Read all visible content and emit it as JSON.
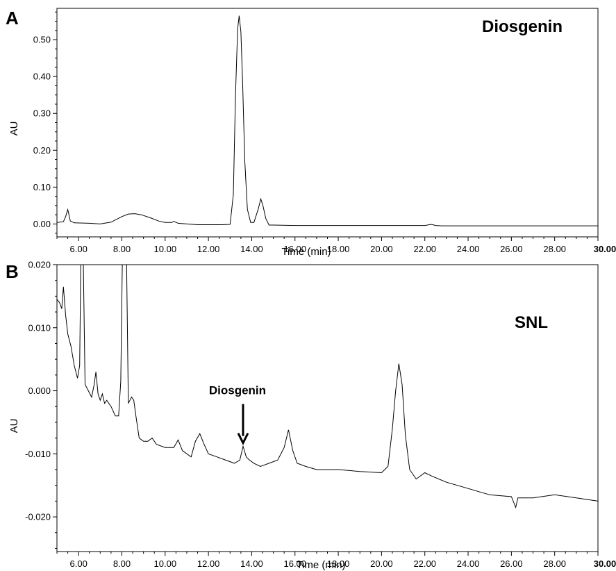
{
  "chart_data": [
    {
      "panel": "A",
      "type": "line",
      "title": "Diosgenin",
      "xlabel": "Time (min)",
      "ylabel": "AU",
      "xlim": [
        5.0,
        30.0
      ],
      "ylim": [
        -0.035,
        0.585
      ],
      "xticks": [
        "6.00",
        "8.00",
        "10.00",
        "12.00",
        "14.00",
        "16.00",
        "18.00",
        "20.00",
        "22.00",
        "24.00",
        "26.00",
        "28.00",
        "30.00"
      ],
      "yticks": [
        "0.00",
        "0.10",
        "0.20",
        "0.30",
        "0.40",
        "0.50"
      ],
      "series": [
        {
          "x": [
            5.0,
            5.3,
            5.4,
            5.5,
            5.62,
            5.8,
            6.5,
            7.0,
            7.5,
            8.0,
            8.3,
            8.6,
            8.9,
            9.3,
            9.7,
            10.0,
            10.3,
            10.4,
            10.6,
            11.0,
            11.5,
            12.0,
            12.6,
            13.0,
            13.15,
            13.25,
            13.35,
            13.42,
            13.5,
            13.58,
            13.68,
            13.8,
            13.95,
            14.1,
            14.3,
            14.42,
            14.52,
            14.65,
            14.8,
            15.0,
            16.0,
            18.0,
            20.0,
            22.0,
            22.3,
            22.5,
            22.8,
            24.0,
            26.0,
            28.0,
            30.0
          ],
          "y": [
            0.004,
            0.006,
            0.02,
            0.039,
            0.008,
            0.003,
            0.002,
            0.0,
            0.005,
            0.02,
            0.027,
            0.028,
            0.025,
            0.017,
            0.008,
            0.004,
            0.004,
            0.007,
            0.002,
            0.0,
            -0.002,
            -0.002,
            -0.002,
            -0.001,
            0.08,
            0.35,
            0.53,
            0.565,
            0.52,
            0.38,
            0.17,
            0.04,
            0.004,
            0.004,
            0.04,
            0.068,
            0.05,
            0.015,
            -0.003,
            -0.003,
            -0.004,
            -0.004,
            -0.004,
            -0.004,
            -0.001,
            -0.004,
            -0.005,
            -0.005,
            -0.005,
            -0.005,
            -0.005
          ]
        }
      ]
    },
    {
      "panel": "B",
      "type": "line",
      "title": "SNL",
      "xlabel": "Time (min)",
      "ylabel": "AU",
      "xlim": [
        5.0,
        30.0
      ],
      "ylim": [
        -0.0255,
        0.02
      ],
      "xticks": [
        "6.00",
        "8.00",
        "10.00",
        "12.00",
        "14.00",
        "16.00",
        "18.00",
        "20.00",
        "22.00",
        "24.00",
        "26.00",
        "28.00",
        "30.00"
      ],
      "yticks": [
        "0.020",
        "0.010",
        "0.000",
        "-0.010",
        "-0.020"
      ],
      "annotations": [
        {
          "text": "Diosgenin",
          "x": 13.6,
          "y": -0.0085
        }
      ],
      "series": [
        {
          "x": [
            5.0,
            5.12,
            5.22,
            5.3,
            5.4,
            5.5,
            5.65,
            5.8,
            5.95,
            6.05,
            6.1,
            6.15,
            6.22,
            6.3,
            6.45,
            6.6,
            6.72,
            6.8,
            6.9,
            7.0,
            7.1,
            7.2,
            7.3,
            7.5,
            7.7,
            7.85,
            7.95,
            8.02,
            8.1,
            8.22,
            8.3,
            8.45,
            8.55,
            8.65,
            8.8,
            9.0,
            9.2,
            9.4,
            9.6,
            10.0,
            10.4,
            10.6,
            10.8,
            11.2,
            11.4,
            11.6,
            11.8,
            12.0,
            12.4,
            12.8,
            13.2,
            13.45,
            13.6,
            13.75,
            13.9,
            14.1,
            14.4,
            14.8,
            15.2,
            15.5,
            15.7,
            15.9,
            16.1,
            16.5,
            17.0,
            18.0,
            19.0,
            20.0,
            20.3,
            20.5,
            20.65,
            20.8,
            20.95,
            21.1,
            21.3,
            21.6,
            22.0,
            22.3,
            23.0,
            24.0,
            24.5,
            25.0,
            26.0,
            26.2,
            26.3,
            27.0,
            28.0,
            29.0,
            30.0
          ],
          "y": [
            0.0145,
            0.014,
            0.013,
            0.0165,
            0.012,
            0.009,
            0.007,
            0.004,
            0.002,
            0.004,
            0.0205,
            0.0205,
            0.0205,
            0.001,
            0.0,
            -0.001,
            0.001,
            0.003,
            -0.0005,
            -0.0015,
            -0.0005,
            -0.002,
            -0.0015,
            -0.0025,
            -0.004,
            -0.004,
            0.0015,
            0.0205,
            0.0205,
            0.0205,
            -0.002,
            -0.001,
            -0.0015,
            -0.004,
            -0.0075,
            -0.008,
            -0.008,
            -0.0075,
            -0.0085,
            -0.009,
            -0.009,
            -0.0078,
            -0.0095,
            -0.0105,
            -0.008,
            -0.0068,
            -0.0085,
            -0.01,
            -0.0105,
            -0.011,
            -0.0115,
            -0.011,
            -0.0088,
            -0.0105,
            -0.011,
            -0.0115,
            -0.012,
            -0.0115,
            -0.011,
            -0.009,
            -0.0062,
            -0.0095,
            -0.0115,
            -0.012,
            -0.0125,
            -0.0125,
            -0.0128,
            -0.013,
            -0.012,
            -0.006,
            0.0,
            0.0043,
            0.001,
            -0.007,
            -0.0125,
            -0.014,
            -0.013,
            -0.0135,
            -0.0145,
            -0.0155,
            -0.016,
            -0.0165,
            -0.0168,
            -0.0185,
            -0.017,
            -0.017,
            -0.0165,
            -0.017,
            -0.0175
          ]
        }
      ]
    }
  ]
}
